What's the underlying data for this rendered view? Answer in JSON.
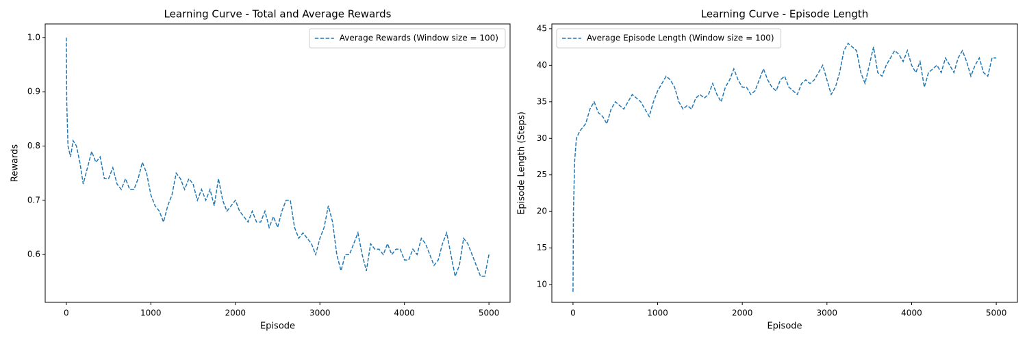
{
  "chart_data": [
    {
      "type": "line",
      "title": "Learning Curve - Total and Average Rewards",
      "x_label": "Episode",
      "y_label": "Rewards",
      "legend": "upper right",
      "x": [
        0,
        5,
        20,
        50,
        80,
        120,
        160,
        200,
        250,
        300,
        350,
        400,
        450,
        500,
        550,
        600,
        650,
        700,
        750,
        800,
        850,
        900,
        950,
        1000,
        1050,
        1100,
        1150,
        1200,
        1250,
        1300,
        1350,
        1400,
        1450,
        1500,
        1550,
        1600,
        1650,
        1700,
        1750,
        1800,
        1850,
        1900,
        1950,
        2000,
        2050,
        2100,
        2150,
        2200,
        2250,
        2300,
        2350,
        2400,
        2450,
        2500,
        2550,
        2600,
        2650,
        2700,
        2750,
        2800,
        2850,
        2900,
        2950,
        3000,
        3050,
        3100,
        3150,
        3200,
        3250,
        3300,
        3350,
        3400,
        3450,
        3500,
        3550,
        3600,
        3650,
        3700,
        3750,
        3800,
        3850,
        3900,
        3950,
        4000,
        4050,
        4100,
        4150,
        4200,
        4250,
        4300,
        4350,
        4400,
        4450,
        4500,
        4550,
        4600,
        4650,
        4700,
        4750,
        4800,
        4850,
        4900,
        4950,
        5000
      ],
      "series": [
        {
          "name": "Average Rewards (Window size = 100)",
          "color": "#1f77b4",
          "values": [
            1.0,
            0.88,
            0.8,
            0.78,
            0.81,
            0.8,
            0.77,
            0.73,
            0.76,
            0.79,
            0.77,
            0.78,
            0.74,
            0.74,
            0.76,
            0.73,
            0.72,
            0.74,
            0.72,
            0.72,
            0.74,
            0.77,
            0.75,
            0.71,
            0.69,
            0.68,
            0.66,
            0.69,
            0.71,
            0.75,
            0.74,
            0.72,
            0.74,
            0.73,
            0.7,
            0.72,
            0.7,
            0.72,
            0.69,
            0.74,
            0.7,
            0.68,
            0.69,
            0.7,
            0.68,
            0.67,
            0.66,
            0.68,
            0.66,
            0.66,
            0.68,
            0.65,
            0.67,
            0.65,
            0.68,
            0.7,
            0.7,
            0.65,
            0.63,
            0.64,
            0.63,
            0.62,
            0.6,
            0.63,
            0.65,
            0.69,
            0.66,
            0.6,
            0.57,
            0.6,
            0.6,
            0.62,
            0.64,
            0.6,
            0.57,
            0.62,
            0.61,
            0.61,
            0.6,
            0.62,
            0.6,
            0.61,
            0.61,
            0.59,
            0.59,
            0.61,
            0.6,
            0.63,
            0.62,
            0.6,
            0.58,
            0.59,
            0.62,
            0.64,
            0.6,
            0.56,
            0.58,
            0.63,
            0.62,
            0.6,
            0.58,
            0.56,
            0.56,
            0.6
          ]
        }
      ],
      "xlim": [
        -250,
        5250
      ],
      "xticks": [
        0,
        1000,
        2000,
        3000,
        4000,
        5000
      ],
      "ylim": [
        0.512,
        1.025
      ],
      "yticks": [
        0.6,
        0.7,
        0.8,
        0.9,
        {
          "value": 1,
          "label": "1.0"
        }
      ]
    },
    {
      "type": "line",
      "title": "Learning Curve - Episode Length",
      "x_label": "Episode",
      "y_label": "Episode Length (Steps)",
      "legend": "upper left",
      "x": [
        0,
        5,
        20,
        40,
        80,
        150,
        200,
        250,
        300,
        350,
        400,
        450,
        500,
        550,
        600,
        650,
        700,
        750,
        800,
        850,
        900,
        950,
        1000,
        1050,
        1100,
        1150,
        1200,
        1250,
        1300,
        1350,
        1400,
        1450,
        1500,
        1550,
        1600,
        1650,
        1700,
        1750,
        1800,
        1850,
        1900,
        1950,
        2000,
        2050,
        2100,
        2150,
        2200,
        2250,
        2300,
        2350,
        2400,
        2450,
        2500,
        2550,
        2600,
        2650,
        2700,
        2750,
        2800,
        2850,
        2900,
        2950,
        3000,
        3050,
        3100,
        3150,
        3200,
        3250,
        3300,
        3350,
        3400,
        3450,
        3500,
        3550,
        3600,
        3650,
        3700,
        3750,
        3800,
        3850,
        3900,
        3950,
        4000,
        4050,
        4100,
        4150,
        4200,
        4250,
        4300,
        4350,
        4400,
        4450,
        4500,
        4550,
        4600,
        4650,
        4700,
        4750,
        4800,
        4850,
        4900,
        4950,
        5000
      ],
      "series": [
        {
          "name": "Average Episode Length (Window size = 100)",
          "color": "#1f77b4",
          "values": [
            9,
            20,
            27,
            30,
            31,
            32,
            34,
            35,
            33.5,
            33,
            32,
            34,
            35,
            34.5,
            34,
            35,
            36,
            35.5,
            35,
            34,
            33,
            35,
            36.5,
            37.5,
            38.5,
            38,
            37,
            35,
            34,
            34.5,
            34,
            35.5,
            36,
            35.5,
            36,
            37.5,
            36,
            35,
            37,
            38,
            39.5,
            38,
            37,
            37,
            36,
            36.5,
            38,
            39.5,
            38,
            37,
            36.5,
            38,
            38.5,
            37,
            36.5,
            36,
            37.5,
            38,
            37.5,
            38,
            39,
            40,
            38,
            36,
            37,
            39,
            42,
            43,
            42.5,
            42,
            39,
            37.5,
            40,
            42.5,
            39,
            38.5,
            40,
            41,
            42,
            41.5,
            40.5,
            42,
            40,
            39,
            40.5,
            37,
            39,
            39.5,
            40,
            39,
            41,
            40,
            39,
            41,
            42,
            40.5,
            38.5,
            40,
            41,
            39,
            38.5,
            41,
            41
          ]
        }
      ],
      "xlim": [
        -250,
        5250
      ],
      "xticks": [
        0,
        1000,
        2000,
        3000,
        4000,
        5000
      ],
      "ylim": [
        7.57,
        45.65
      ],
      "yticks": [
        10,
        15,
        20,
        25,
        30,
        35,
        40,
        45
      ]
    }
  ]
}
